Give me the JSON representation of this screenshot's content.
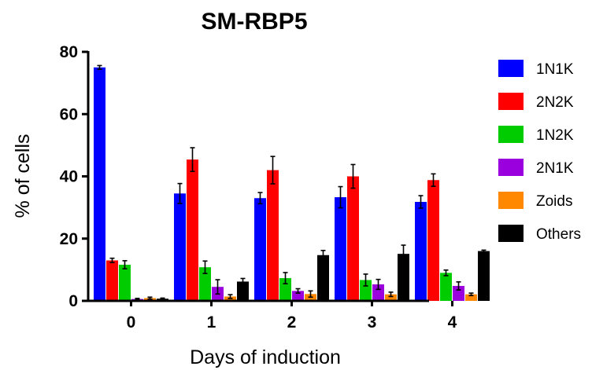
{
  "chart_data": {
    "type": "bar",
    "title": "SM-RBP5",
    "xlabel": "Days of induction",
    "ylabel": "% of cells",
    "categories": [
      "0",
      "1",
      "2",
      "3",
      "4"
    ],
    "ylim": [
      0,
      80
    ],
    "yticks": [
      "0",
      "20",
      "40",
      "60",
      "80"
    ],
    "grid": false,
    "legend_position": "right",
    "series": [
      {
        "name": "1N1K",
        "color": "#0000ff",
        "values": [
          75.0,
          34.5,
          33.0,
          33.3,
          31.8
        ],
        "errors": [
          0.6,
          3.2,
          1.8,
          3.4,
          2.0
        ]
      },
      {
        "name": "2N2K",
        "color": "#ff0000",
        "values": [
          13.0,
          45.4,
          42.0,
          40.0,
          38.8
        ],
        "errors": [
          0.7,
          3.8,
          4.4,
          3.8,
          2.0
        ]
      },
      {
        "name": "1N2K",
        "color": "#00cc00",
        "values": [
          11.6,
          10.8,
          7.3,
          6.7,
          9.0
        ],
        "errors": [
          1.3,
          2.0,
          1.8,
          1.9,
          0.9
        ]
      },
      {
        "name": "2N1K",
        "color": "#9900dd",
        "values": [
          0.6,
          4.5,
          3.2,
          5.3,
          4.8
        ],
        "errors": [
          0.2,
          2.3,
          0.7,
          1.6,
          1.3
        ]
      },
      {
        "name": "Zoids",
        "color": "#ff8800",
        "values": [
          0.9,
          1.4,
          2.2,
          2.1,
          2.1
        ],
        "errors": [
          0.3,
          0.6,
          1.0,
          0.7,
          0.4
        ]
      },
      {
        "name": "Others",
        "color": "#000000",
        "values": [
          0.7,
          6.2,
          14.7,
          15.1,
          16.0
        ],
        "errors": [
          0.2,
          1.0,
          1.5,
          2.8,
          0.3
        ]
      }
    ]
  }
}
